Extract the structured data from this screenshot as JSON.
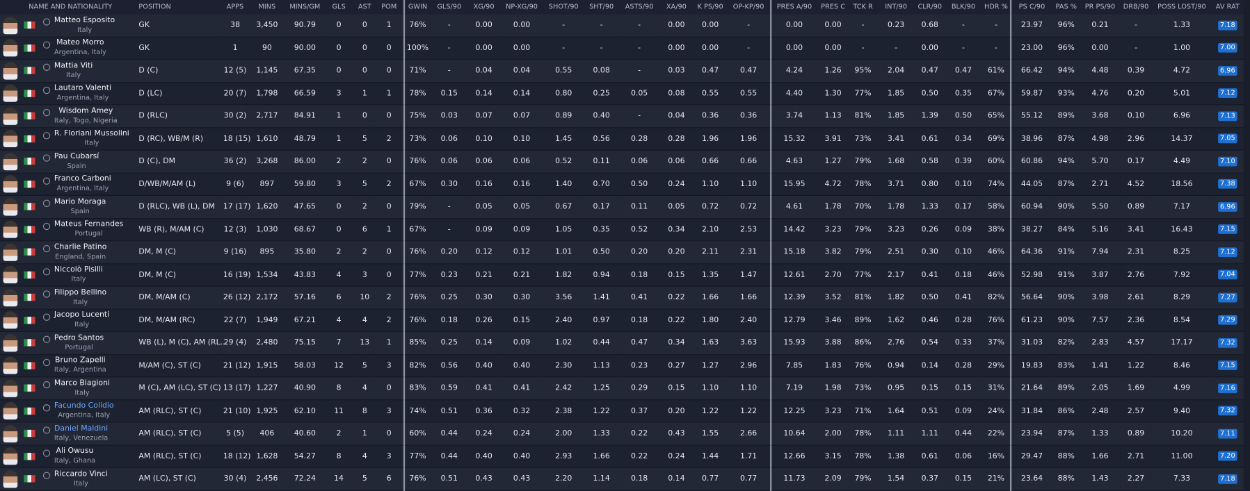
{
  "table": {
    "columns": [
      "NAME AND NATIONALITY",
      "POSITION",
      "APPS",
      "MINS",
      "MINS/GM",
      "GLS",
      "AST",
      "POM",
      "GWIN",
      "GLS/90",
      "XG/90",
      "NP-XG/90",
      "SHOT/90",
      "SHT/90",
      "ASTS/90",
      "XA/90",
      "K PS/90",
      "OP-KP/90",
      "PRES A/90",
      "PRES C",
      "TCK R",
      "INT/90",
      "CLR/90",
      "BLK/90",
      "HDR %",
      "PS C/90",
      "PAS %",
      "PR PS/90",
      "DRB/90",
      "POSS LOST/90",
      "AV RAT"
    ],
    "rows": [
      {
        "name": "Matteo Esposito",
        "nationality": "Italy",
        "position": "GK",
        "stats": [
          "38",
          "3,450",
          "90.79",
          "0",
          "0",
          "1",
          "76%",
          "-",
          "0.00",
          "0.00",
          "-",
          "-",
          "-",
          "0.00",
          "0.00",
          "-",
          "0.00",
          "0.00",
          "-",
          "0.23",
          "0.68",
          "-",
          "-",
          "23.97",
          "96%",
          "0.21",
          "-",
          "1.33",
          "7.18"
        ]
      },
      {
        "name": "Mateo Morro",
        "nationality": "Argentina, Italy",
        "position": "GK",
        "stats": [
          "1",
          "90",
          "90.00",
          "0",
          "0",
          "0",
          "100%",
          "-",
          "0.00",
          "0.00",
          "-",
          "-",
          "-",
          "0.00",
          "0.00",
          "-",
          "0.00",
          "0.00",
          "-",
          "-",
          "0.00",
          "-",
          "-",
          "23.00",
          "96%",
          "0.00",
          "-",
          "1.00",
          "7.00"
        ]
      },
      {
        "name": "Mattia Viti",
        "nationality": "Italy",
        "position": "D (C)",
        "stats": [
          "12 (5)",
          "1,145",
          "67.35",
          "0",
          "0",
          "0",
          "71%",
          "-",
          "0.04",
          "0.04",
          "0.55",
          "0.08",
          "-",
          "0.03",
          "0.47",
          "0.47",
          "4.24",
          "1.26",
          "95%",
          "2.04",
          "0.47",
          "0.47",
          "61%",
          "66.42",
          "94%",
          "4.48",
          "0.39",
          "4.72",
          "6.96"
        ]
      },
      {
        "name": "Lautaro Valenti",
        "nationality": "Argentina, Italy",
        "position": "D (LC)",
        "stats": [
          "20 (7)",
          "1,798",
          "66.59",
          "3",
          "1",
          "1",
          "78%",
          "0.15",
          "0.14",
          "0.14",
          "0.80",
          "0.25",
          "0.05",
          "0.08",
          "0.55",
          "0.55",
          "4.40",
          "1.30",
          "77%",
          "1.85",
          "0.50",
          "0.35",
          "67%",
          "59.87",
          "93%",
          "4.76",
          "0.20",
          "5.01",
          "7.12"
        ]
      },
      {
        "name": "Wisdom Amey",
        "nationality": "Italy, Togo, Nigeria",
        "position": "D (RLC)",
        "stats": [
          "30 (2)",
          "2,717",
          "84.91",
          "1",
          "0",
          "0",
          "75%",
          "0.03",
          "0.07",
          "0.07",
          "0.89",
          "0.40",
          "-",
          "0.04",
          "0.36",
          "0.36",
          "3.74",
          "1.13",
          "81%",
          "1.85",
          "1.39",
          "0.50",
          "65%",
          "55.12",
          "89%",
          "3.68",
          "0.10",
          "6.96",
          "7.13"
        ]
      },
      {
        "name": "R. Floriani Mussolini",
        "nationality": "Italy",
        "position": "D (RC), WB/M (R)",
        "stats": [
          "18 (15)",
          "1,610",
          "48.79",
          "1",
          "5",
          "2",
          "73%",
          "0.06",
          "0.10",
          "0.10",
          "1.45",
          "0.56",
          "0.28",
          "0.28",
          "1.96",
          "1.96",
          "15.32",
          "3.91",
          "73%",
          "3.41",
          "0.61",
          "0.34",
          "69%",
          "38.96",
          "87%",
          "4.98",
          "2.96",
          "14.37",
          "7.05"
        ]
      },
      {
        "name": "Pau Cubarsí",
        "nationality": "Spain",
        "position": "D (C), DM",
        "stats": [
          "36 (2)",
          "3,268",
          "86.00",
          "2",
          "2",
          "0",
          "76%",
          "0.06",
          "0.06",
          "0.06",
          "0.52",
          "0.11",
          "0.06",
          "0.06",
          "0.66",
          "0.66",
          "4.63",
          "1.27",
          "79%",
          "1.68",
          "0.58",
          "0.39",
          "60%",
          "60.86",
          "94%",
          "5.70",
          "0.17",
          "4.49",
          "7.10"
        ]
      },
      {
        "name": "Franco Carboni",
        "nationality": "Argentina, Italy",
        "position": "D/WB/M/AM (L)",
        "stats": [
          "9 (6)",
          "897",
          "59.80",
          "3",
          "5",
          "2",
          "67%",
          "0.30",
          "0.16",
          "0.16",
          "1.40",
          "0.70",
          "0.50",
          "0.24",
          "1.10",
          "1.10",
          "15.95",
          "4.72",
          "78%",
          "3.71",
          "0.80",
          "0.10",
          "74%",
          "44.05",
          "87%",
          "2.71",
          "4.52",
          "18.56",
          "7.38"
        ]
      },
      {
        "name": "Mario Moraga",
        "nationality": "Spain",
        "position": "D (RLC), WB (L), DM",
        "stats": [
          "17 (17)",
          "1,620",
          "47.65",
          "0",
          "2",
          "0",
          "79%",
          "-",
          "0.05",
          "0.05",
          "0.67",
          "0.17",
          "0.11",
          "0.05",
          "0.72",
          "0.72",
          "4.61",
          "1.78",
          "70%",
          "1.78",
          "1.33",
          "0.17",
          "58%",
          "60.94",
          "90%",
          "5.50",
          "0.89",
          "7.17",
          "6.96"
        ]
      },
      {
        "name": "Mateus Fernandes",
        "nationality": "Portugal",
        "position": "WB (R), M/AM (C)",
        "stats": [
          "12 (3)",
          "1,030",
          "68.67",
          "0",
          "6",
          "1",
          "67%",
          "-",
          "0.09",
          "0.09",
          "1.05",
          "0.35",
          "0.52",
          "0.34",
          "2.10",
          "2.53",
          "14.42",
          "3.23",
          "79%",
          "3.23",
          "0.26",
          "0.09",
          "38%",
          "38.27",
          "84%",
          "5.16",
          "3.41",
          "16.43",
          "7.15"
        ]
      },
      {
        "name": "Charlie Patino",
        "nationality": "England, Spain",
        "position": "DM, M (C)",
        "stats": [
          "9 (16)",
          "895",
          "35.80",
          "2",
          "2",
          "0",
          "76%",
          "0.20",
          "0.12",
          "0.12",
          "1.01",
          "0.50",
          "0.20",
          "0.20",
          "2.11",
          "2.31",
          "15.18",
          "3.82",
          "79%",
          "2.51",
          "0.30",
          "0.10",
          "46%",
          "64.36",
          "91%",
          "7.94",
          "2.31",
          "8.25",
          "7.12"
        ]
      },
      {
        "name": "Niccolò Pisilli",
        "nationality": "Italy",
        "position": "DM, M (C)",
        "stats": [
          "16 (19)",
          "1,534",
          "43.83",
          "4",
          "3",
          "0",
          "77%",
          "0.23",
          "0.21",
          "0.21",
          "1.82",
          "0.94",
          "0.18",
          "0.15",
          "1.35",
          "1.47",
          "12.61",
          "2.70",
          "77%",
          "2.17",
          "0.41",
          "0.18",
          "46%",
          "52.98",
          "91%",
          "3.87",
          "2.76",
          "7.92",
          "7.04"
        ]
      },
      {
        "name": "Filippo Bellino",
        "nationality": "Italy",
        "position": "DM, M/AM (C)",
        "stats": [
          "26 (12)",
          "2,172",
          "57.16",
          "6",
          "10",
          "2",
          "76%",
          "0.25",
          "0.30",
          "0.30",
          "3.56",
          "1.41",
          "0.41",
          "0.22",
          "1.66",
          "1.66",
          "12.39",
          "3.52",
          "81%",
          "1.82",
          "0.50",
          "0.41",
          "82%",
          "56.64",
          "90%",
          "3.98",
          "2.61",
          "8.29",
          "7.27"
        ]
      },
      {
        "name": "Jacopo Lucenti",
        "nationality": "Italy",
        "position": "DM, M/AM (RC)",
        "stats": [
          "22 (7)",
          "1,949",
          "67.21",
          "4",
          "4",
          "2",
          "76%",
          "0.18",
          "0.26",
          "0.15",
          "2.40",
          "0.97",
          "0.18",
          "0.22",
          "1.80",
          "2.40",
          "12.79",
          "3.46",
          "89%",
          "1.62",
          "0.46",
          "0.28",
          "76%",
          "61.23",
          "90%",
          "7.57",
          "2.36",
          "8.54",
          "7.29"
        ]
      },
      {
        "name": "Pedro Santos",
        "nationality": "Portugal",
        "position": "WB (L), M (C), AM (RL...",
        "stats": [
          "29 (4)",
          "2,480",
          "75.15",
          "7",
          "13",
          "1",
          "85%",
          "0.25",
          "0.14",
          "0.09",
          "1.02",
          "0.44",
          "0.47",
          "0.34",
          "1.63",
          "3.63",
          "15.93",
          "3.88",
          "86%",
          "2.76",
          "0.54",
          "0.33",
          "37%",
          "31.03",
          "82%",
          "2.83",
          "4.57",
          "17.17",
          "7.32"
        ]
      },
      {
        "name": "Bruno Zapelli",
        "nationality": "Italy, Argentina",
        "position": "M/AM (C), ST (C)",
        "stats": [
          "21 (12)",
          "1,915",
          "58.03",
          "12",
          "5",
          "3",
          "82%",
          "0.56",
          "0.40",
          "0.40",
          "2.30",
          "1.13",
          "0.23",
          "0.27",
          "1.27",
          "2.96",
          "7.85",
          "1.83",
          "76%",
          "0.94",
          "0.14",
          "0.28",
          "29%",
          "19.83",
          "83%",
          "1.41",
          "1.22",
          "8.46",
          "7.15"
        ]
      },
      {
        "name": "Marco Biagioni",
        "nationality": "Italy",
        "position": "M (C), AM (LC), ST (C)",
        "stats": [
          "13 (17)",
          "1,227",
          "40.90",
          "8",
          "4",
          "0",
          "83%",
          "0.59",
          "0.41",
          "0.41",
          "2.42",
          "1.25",
          "0.29",
          "0.15",
          "1.10",
          "1.10",
          "7.19",
          "1.98",
          "73%",
          "0.95",
          "0.15",
          "0.15",
          "31%",
          "21.64",
          "89%",
          "2.05",
          "1.69",
          "4.99",
          "7.16"
        ]
      },
      {
        "name": "Facundo Colidio",
        "nationality": "Argentina, Italy",
        "position": "AM (RLC), ST (C)",
        "link": true,
        "stats": [
          "21 (10)",
          "1,925",
          "62.10",
          "11",
          "8",
          "3",
          "74%",
          "0.51",
          "0.36",
          "0.32",
          "2.38",
          "1.22",
          "0.37",
          "0.20",
          "1.22",
          "1.22",
          "12.25",
          "3.23",
          "71%",
          "1.64",
          "0.51",
          "0.09",
          "24%",
          "31.84",
          "86%",
          "2.48",
          "2.57",
          "9.40",
          "7.32"
        ]
      },
      {
        "name": "Daniel Maldini",
        "nationality": "Italy, Venezuela",
        "position": "AM (RLC), ST (C)",
        "link": true,
        "stats": [
          "5 (5)",
          "406",
          "40.60",
          "2",
          "1",
          "0",
          "60%",
          "0.44",
          "0.24",
          "0.24",
          "2.00",
          "1.33",
          "0.22",
          "0.43",
          "1.55",
          "2.66",
          "10.64",
          "2.00",
          "78%",
          "1.11",
          "1.11",
          "0.44",
          "22%",
          "23.94",
          "87%",
          "1.33",
          "0.89",
          "10.20",
          "7.11"
        ]
      },
      {
        "name": "Ali Owusu",
        "nationality": "Italy, Ghana",
        "position": "AM (RLC), ST (C)",
        "stats": [
          "18 (12)",
          "1,628",
          "54.27",
          "8",
          "4",
          "3",
          "77%",
          "0.44",
          "0.40",
          "0.40",
          "2.93",
          "1.66",
          "0.22",
          "0.24",
          "1.44",
          "1.71",
          "12.66",
          "3.15",
          "78%",
          "1.38",
          "0.61",
          "0.06",
          "16%",
          "29.47",
          "88%",
          "1.66",
          "2.71",
          "11.00",
          "7.20"
        ]
      },
      {
        "name": "Riccardo Vinci",
        "nationality": "Italy",
        "position": "AM (LC), ST (C)",
        "stats": [
          "30 (4)",
          "2,456",
          "72.24",
          "14",
          "5",
          "6",
          "76%",
          "0.51",
          "0.43",
          "0.43",
          "2.20",
          "1.14",
          "0.18",
          "0.14",
          "0.77",
          "0.77",
          "11.73",
          "2.09",
          "79%",
          "1.54",
          "0.37",
          "0.15",
          "21%",
          "23.64",
          "88%",
          "1.43",
          "2.27",
          "7.33",
          "7.18"
        ]
      }
    ]
  }
}
